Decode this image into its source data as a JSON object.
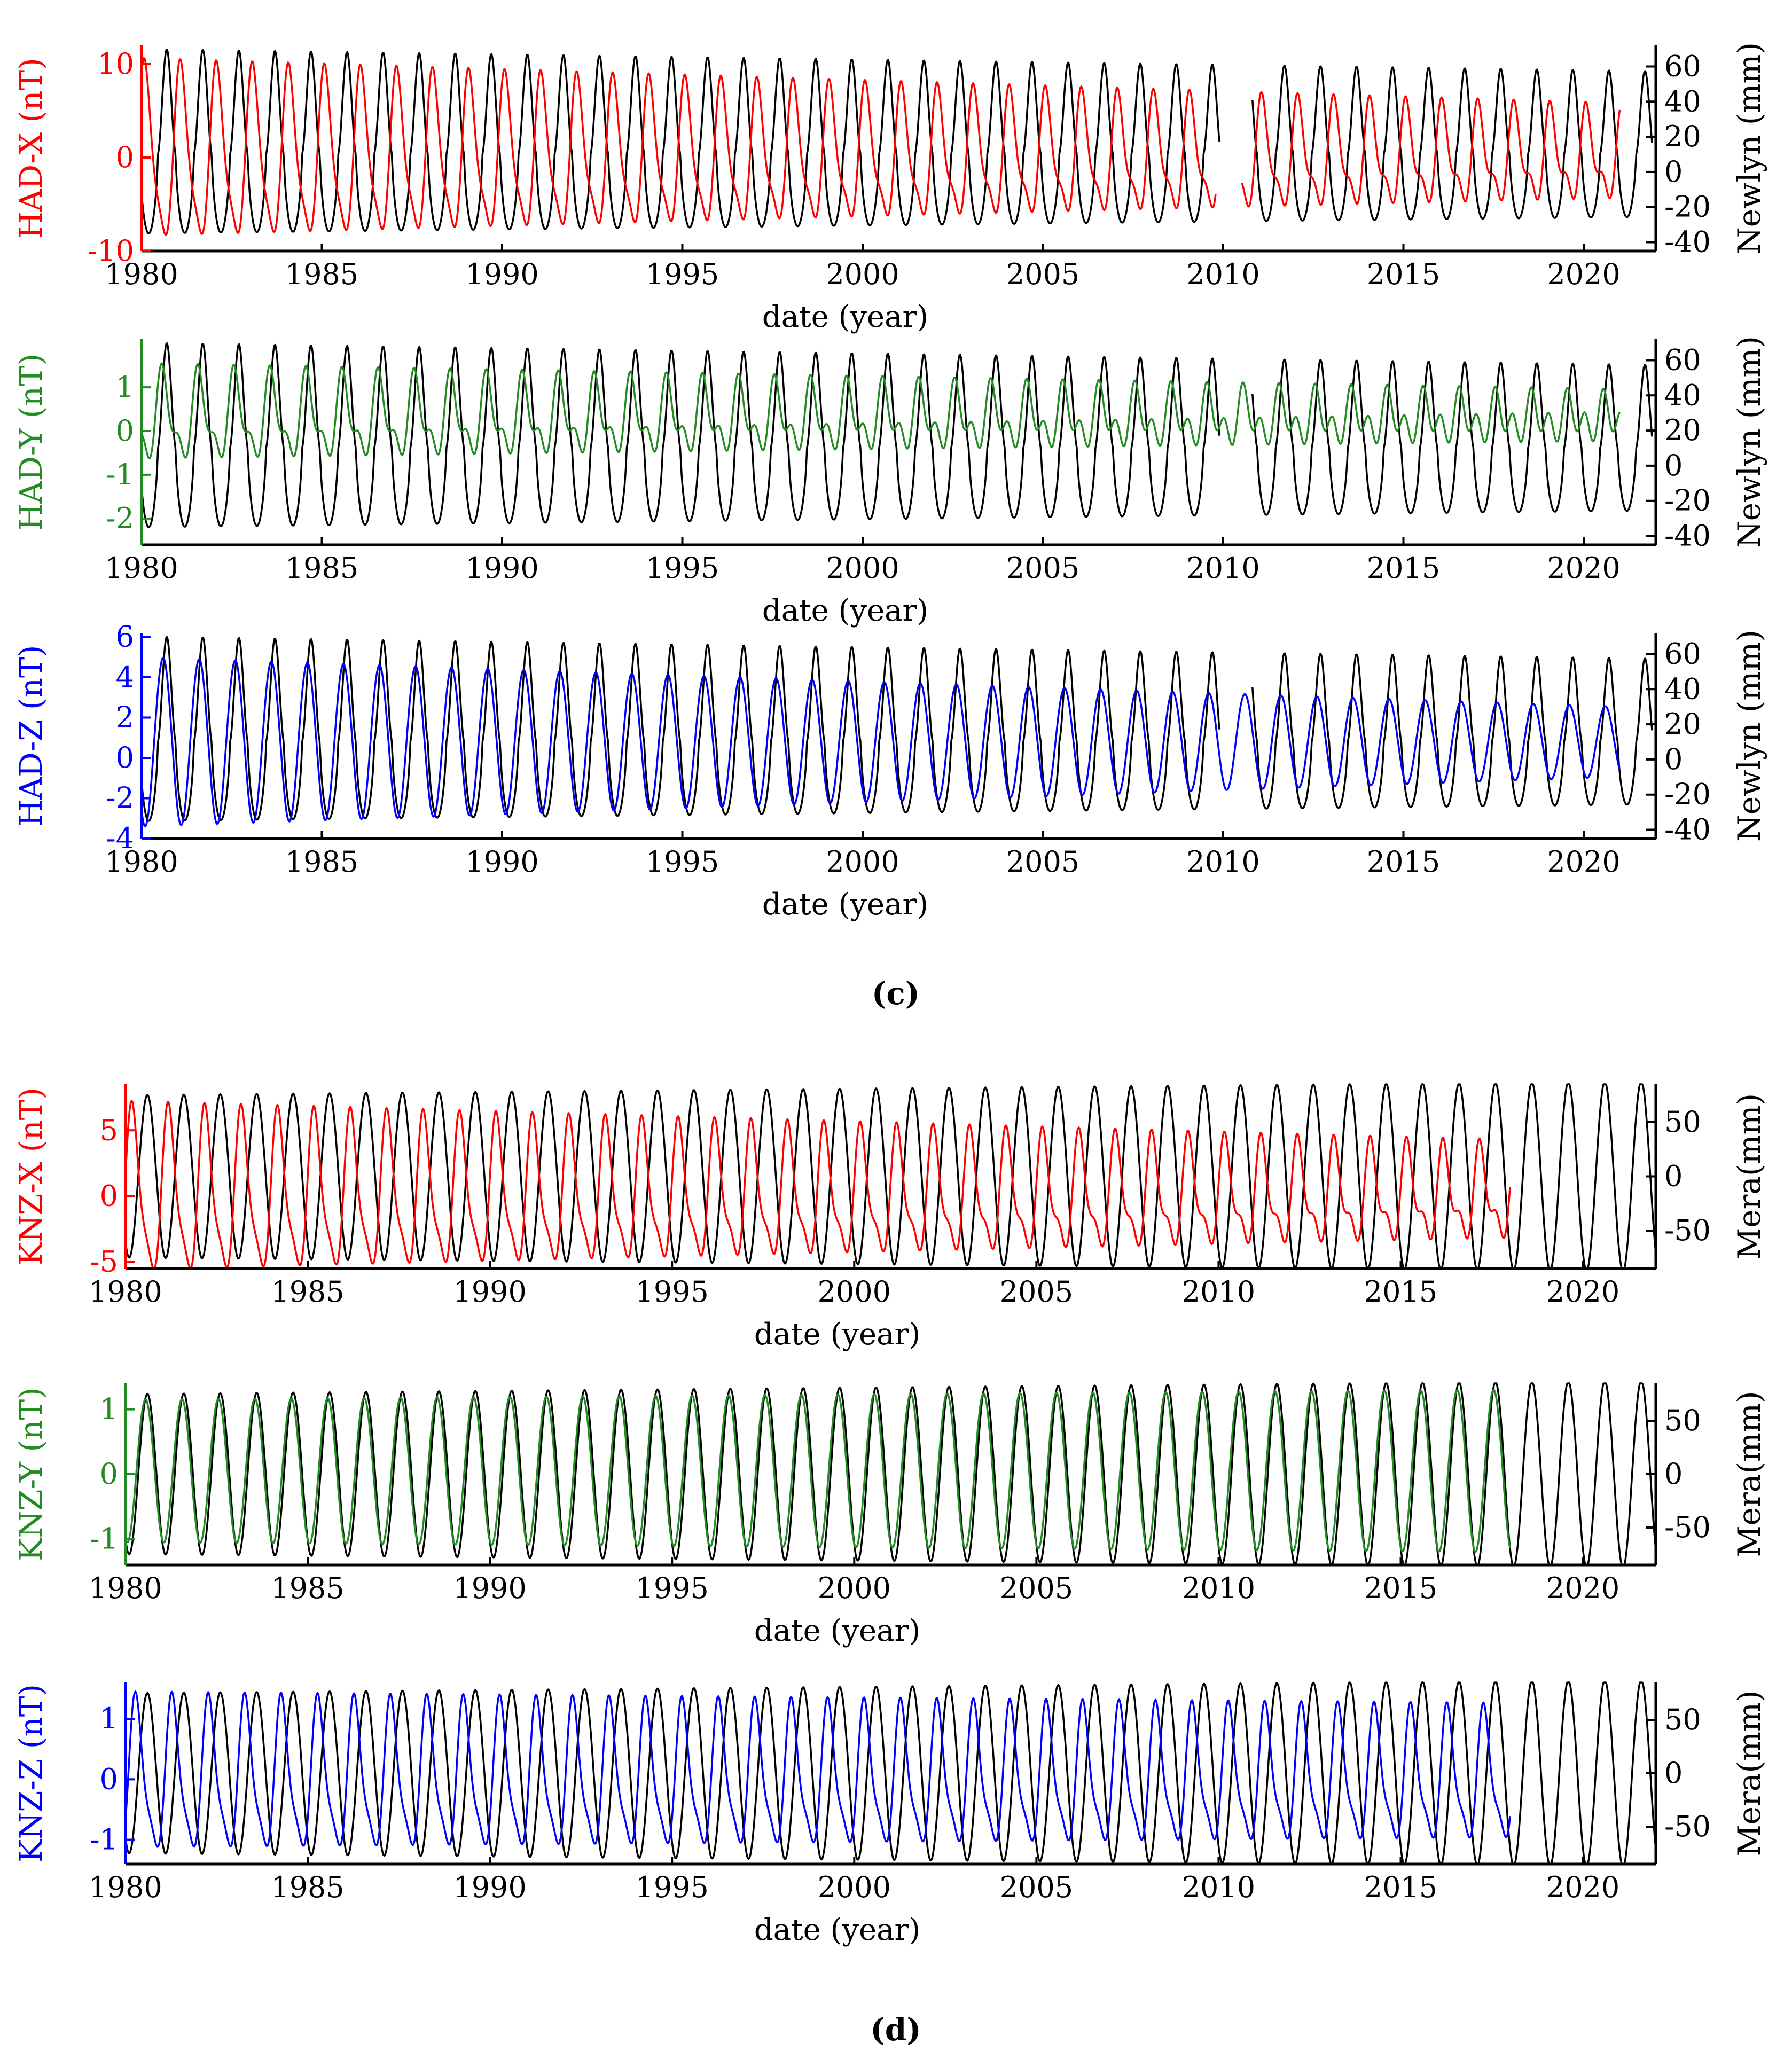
{
  "colors": {
    "black": "#000000",
    "red": "#ff0000",
    "green": "#228b22",
    "blue": "#0000ff"
  },
  "panel_labels": [
    "(c)",
    "(d)"
  ],
  "chart_data": [
    {
      "type": "line",
      "panel": "(c)",
      "series_color": "red",
      "title": "",
      "xlabel": "date (year)",
      "ylabel_left": "HAD-X (nT)",
      "ylabel_right": "Newlyn (mm)",
      "xlim": [
        1980,
        2022
      ],
      "xticks": [
        1980,
        1985,
        1990,
        1995,
        2000,
        2005,
        2010,
        2015,
        2020
      ],
      "ylim_left": [
        -10,
        12
      ],
      "yticks_left": [
        -10,
        0,
        10
      ],
      "ylim_right": [
        -45,
        72
      ],
      "yticks_right": [
        -40,
        -20,
        0,
        20,
        40,
        60
      ],
      "left_end": 2021,
      "left_gaps": [
        [
          2009.8,
          2010.5
        ]
      ],
      "right_end": 2021.9,
      "right_gaps": [
        [
          2009.9,
          2010.8
        ]
      ],
      "series": [
        {
          "name": "HAD-X",
          "axis": "left",
          "color": "red",
          "model": {
            "type": "double",
            "mean": 0,
            "amp": 9,
            "amp2": 2,
            "amp_trend": -0.12,
            "phase": 0.1
          }
        },
        {
          "name": "Newlyn",
          "axis": "right",
          "color": "black",
          "model": {
            "type": "peaked",
            "mean": 10,
            "amp": 60,
            "amp_trend": -0.3,
            "phase": 0.7
          }
        }
      ]
    },
    {
      "type": "line",
      "panel": "(c)",
      "series_color": "green",
      "title": "",
      "xlabel": "date (year)",
      "ylabel_left": "HAD-Y (nT)",
      "ylabel_right": "Newlyn (mm)",
      "xlim": [
        1980,
        2022
      ],
      "xticks": [
        1980,
        1985,
        1990,
        1995,
        2000,
        2005,
        2010,
        2015,
        2020
      ],
      "ylim_left": [
        -2.6,
        2.1
      ],
      "yticks_left": [
        -2,
        -1,
        0,
        1
      ],
      "ylim_right": [
        -45,
        72
      ],
      "yticks_right": [
        -40,
        -20,
        0,
        20,
        40,
        60
      ],
      "left_end": 2021,
      "left_gaps": [],
      "right_end": 2021.9,
      "right_gaps": [
        [
          2009.9,
          2010.8
        ]
      ],
      "series": [
        {
          "name": "HAD-Y",
          "axis": "left",
          "color": "green",
          "model": {
            "type": "double",
            "mean": 0.3,
            "amp": 0.9,
            "amp2": 0.4,
            "amp_trend": -0.015,
            "phase": 0.6
          }
        },
        {
          "name": "Newlyn",
          "axis": "right",
          "color": "black",
          "model": {
            "type": "peaked",
            "mean": 10,
            "amp": 60,
            "amp_trend": -0.3,
            "phase": 0.7
          }
        }
      ]
    },
    {
      "type": "line",
      "panel": "(c)",
      "series_color": "blue",
      "title": "",
      "xlabel": "date (year)",
      "ylabel_left": "HAD-Z (nT)",
      "ylabel_right": "Newlyn (mm)",
      "xlim": [
        1980,
        2022
      ],
      "xticks": [
        1980,
        1985,
        1990,
        1995,
        2000,
        2005,
        2010,
        2015,
        2020
      ],
      "ylim_left": [
        -4,
        6.2
      ],
      "yticks_left": [
        -4,
        -2,
        0,
        2,
        4,
        6
      ],
      "ylim_right": [
        -45,
        72
      ],
      "yticks_right": [
        -40,
        -20,
        0,
        20,
        40,
        60
      ],
      "left_end": 2021,
      "left_gaps": [],
      "right_end": 2021.9,
      "right_gaps": [
        [
          2009.9,
          2010.8
        ]
      ],
      "series": [
        {
          "name": "HAD-Z",
          "axis": "left",
          "color": "blue",
          "model": {
            "type": "sine",
            "mean": 0.8,
            "amp": 4.2,
            "amp_trend": -0.06,
            "phase": 0.6
          }
        },
        {
          "name": "Newlyn",
          "axis": "right",
          "color": "black",
          "model": {
            "type": "peaked",
            "mean": 10,
            "amp": 60,
            "amp_trend": -0.3,
            "phase": 0.7
          }
        }
      ]
    },
    {
      "type": "line",
      "panel": "(d)",
      "series_color": "red",
      "title": "",
      "xlabel": "date (year)",
      "ylabel_left": "KNZ-X (nT)",
      "ylabel_right": "Mera(mm)",
      "xlim": [
        1980,
        2022
      ],
      "xticks": [
        1980,
        1985,
        1990,
        1995,
        2000,
        2005,
        2010,
        2015,
        2020
      ],
      "ylim_left": [
        -5.5,
        8.5
      ],
      "yticks_left": [
        -5,
        0,
        5
      ],
      "ylim_right": [
        -85,
        85
      ],
      "yticks_right": [
        -50,
        0,
        50
      ],
      "left_end": 2018,
      "left_gaps": [],
      "right_end": 2022,
      "right_gaps": [],
      "series": [
        {
          "name": "KNZ-X",
          "axis": "left",
          "color": "red",
          "model": {
            "type": "double",
            "mean": 0,
            "amp": 6,
            "amp2": 1.5,
            "amp_trend": -0.08,
            "phase": 0.2
          }
        },
        {
          "name": "Mera",
          "axis": "right",
          "color": "black",
          "model": {
            "type": "sine",
            "mean": 0,
            "amp": 75,
            "amp_trend": 0.3,
            "phase": 0.6
          }
        }
      ]
    },
    {
      "type": "line",
      "panel": "(d)",
      "series_color": "green",
      "title": "",
      "xlabel": "date (year)",
      "ylabel_left": "KNZ-Y (nT)",
      "ylabel_right": "Mera(mm)",
      "xlim": [
        1980,
        2022
      ],
      "xticks": [
        1980,
        1985,
        1990,
        1995,
        2000,
        2005,
        2010,
        2015,
        2020
      ],
      "ylim_left": [
        -1.4,
        1.4
      ],
      "yticks_left": [
        -1,
        0,
        1
      ],
      "ylim_right": [
        -85,
        85
      ],
      "yticks_right": [
        -50,
        0,
        50
      ],
      "left_end": 2018,
      "left_gaps": [],
      "right_end": 2022,
      "right_gaps": [],
      "series": [
        {
          "name": "KNZ-Y",
          "axis": "left",
          "color": "green",
          "model": {
            "type": "sine",
            "mean": 0.05,
            "amp": 1.1,
            "amp_trend": 0.004,
            "phase": 0.55
          }
        },
        {
          "name": "Mera",
          "axis": "right",
          "color": "black",
          "model": {
            "type": "sine",
            "mean": 0,
            "amp": 75,
            "amp_trend": 0.3,
            "phase": 0.6
          }
        }
      ]
    },
    {
      "type": "line",
      "panel": "(d)",
      "series_color": "blue",
      "title": "",
      "xlabel": "date (year)",
      "ylabel_left": "KNZ-Z (nT)",
      "ylabel_right": "Mera(mm)",
      "xlim": [
        1980,
        2022
      ],
      "xticks": [
        1980,
        1985,
        1990,
        1995,
        2000,
        2005,
        2010,
        2015,
        2020
      ],
      "ylim_left": [
        -1.4,
        1.6
      ],
      "yticks_left": [
        -1,
        0,
        1
      ],
      "ylim_right": [
        -85,
        85
      ],
      "yticks_right": [
        -50,
        0,
        50
      ],
      "left_end": 2018,
      "left_gaps": [],
      "right_end": 2022,
      "right_gaps": [],
      "series": [
        {
          "name": "KNZ-Z",
          "axis": "left",
          "color": "blue",
          "model": {
            "type": "double",
            "mean": 0,
            "amp": 1.2,
            "amp2": 0.3,
            "amp_trend": -0.005,
            "phase": 0.3
          }
        },
        {
          "name": "Mera",
          "axis": "right",
          "color": "black",
          "model": {
            "type": "sine",
            "mean": 0,
            "amp": 75,
            "amp_trend": 0.3,
            "phase": 0.6
          }
        }
      ]
    }
  ]
}
